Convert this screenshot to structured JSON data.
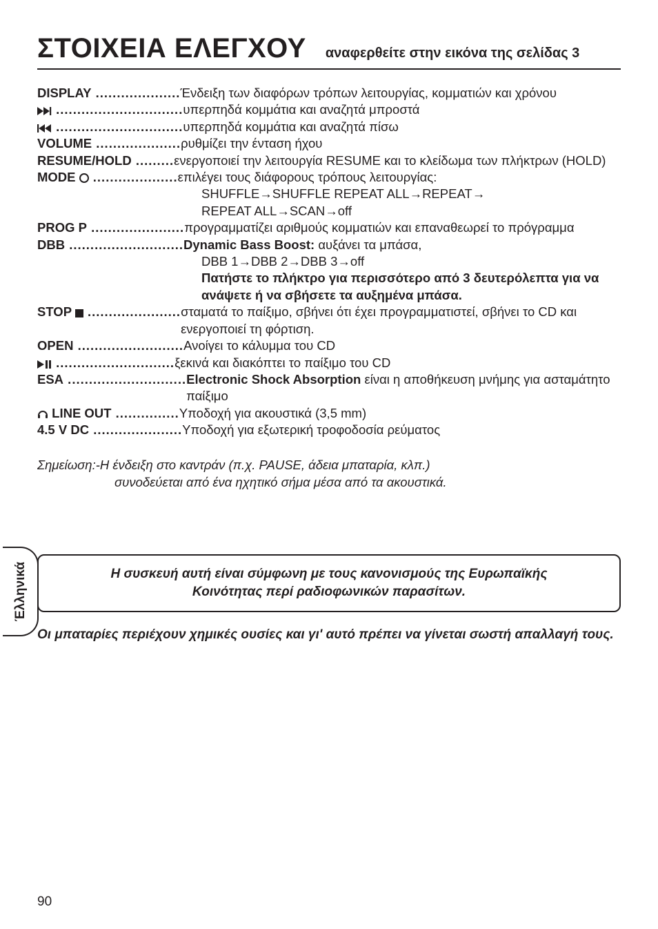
{
  "header": {
    "title": "ΣΤΟΙΧΕΙΑ ΕΛΕΓΧΟΥ",
    "subtitle": "αναφερθείτε στην εικόνα της σελίδας 3"
  },
  "sideTab": "Έλληνικά",
  "controls": [
    {
      "term": "DISPLAY",
      "dots": "....................",
      "desc": "Ένδειξη των διαφόρων τρόπων λειτουργίας, κομματιών και χρόνου"
    },
    {
      "term_svg": "ffwd",
      "dots": "..............................",
      "desc": "υπερπηδά κομμάτια και αναζητά μπροστά"
    },
    {
      "term_svg": "rew",
      "dots": "..............................",
      "desc": "υπερπηδά κομμάτια και αναζητά πίσω"
    },
    {
      "term": "VOLUME",
      "dots": "....................",
      "desc": "ρυθμίζει την ένταση ήχου"
    },
    {
      "term": "RESUME/HOLD",
      "dots": ".........",
      "desc": "ενεργοποιεί την λειτουργία RESUME και το κλείδωμα των πλήκτρων (HOLD)",
      "cont": true
    },
    {
      "term": "MODE",
      "term_svg_suffix": "circle",
      "dots": "....................",
      "desc": "επιλέγει τους διάφορους τρόπους λειτουργίας:",
      "extra": [
        "SHUFFLE→SHUFFLE REPEAT ALL→REPEAT→",
        "REPEAT ALL→SCAN→off"
      ]
    },
    {
      "term": "PROG P",
      "dots": "......................",
      "desc": "προγραμματίζει αριθμούς κομματιών και επαναθεωρεί το πρόγραμμα",
      "cont": true
    },
    {
      "term": "DBB",
      "dots": "...........................",
      "desc_html": "<b>Dynamic Bass Boost:</b> αυξάνει τα μπάσα,",
      "extra": [
        "DBB 1→DBB 2→DBB 3→off"
      ],
      "extra_bold": [
        "Πατήστε το πλήκτρο για περισσότερο από 3 δευτερόλεπτα για να ανάψετε ή να σβήσετε τα αυξημένα μπάσα."
      ]
    },
    {
      "term": "STOP",
      "term_svg_suffix": "stop",
      "dots": "......................",
      "desc": "σταματά το παίξιμο, σβήνει ότι έχει προγραμματιστεί, σβήνει το CD και ενεργοποιεί τη φόρτιση.",
      "cont": true
    },
    {
      "term": "OPEN",
      "dots": ".........................",
      "desc": "Ανοίγει το κάλυμμα του CD"
    },
    {
      "term_svg": "playpause",
      "dots": "............................",
      "desc": "ξεκινά και διακόπτει το παίξιμο του CD"
    },
    {
      "term": "ESA",
      "dots": "............................",
      "desc_html": "<b>Electronic Shock Absorption</b> είναι η αποθήκευση μνήμης για ασταμάτητο παίξιμο",
      "cont": true
    },
    {
      "term_svg_prefix": "headphones",
      "term": "LINE OUT",
      "dots": "...............",
      "desc": "Υποδοχή για ακουστικά (3,5 mm)"
    },
    {
      "term": "4.5 V DC",
      "dots": ".....................",
      "desc": "Υποδοχή για εξωτερική τροφοδοσία ρεύματος"
    }
  ],
  "footnote": {
    "lead": "Σημείωση:-",
    "line1": "Η ένδειξη στο καντράν (π.χ. PAUSE, άδεια μπαταρία, κλπ.)",
    "line2": "συνοδεύεται από ένα ηχητικό σήμα μέσα από τα ακουστικά."
  },
  "compliance": [
    "Η συσκευή αυτή είναι σύμφωνη με τους κανονισμούς της Ευρωπαϊκής",
    "Κοινότητας περί ραδιοφωνικών παρασίτων."
  ],
  "battery": "Οι μπαταρίες περιέχουν χημικές ουσίες και γι' αυτό πρέπει να γίνεται σωστή απαλλαγή τους.",
  "pageNumber": "90",
  "colors": {
    "text": "#231f20",
    "bg": "#ffffff"
  }
}
